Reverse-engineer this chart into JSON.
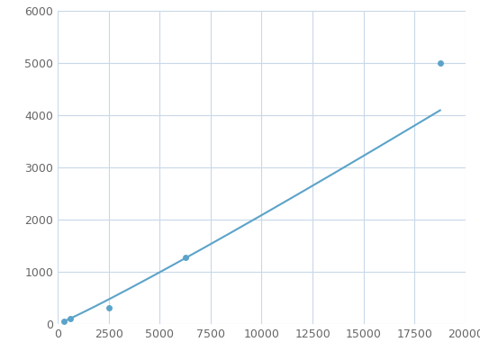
{
  "x": [
    312,
    625,
    2500,
    6250,
    18750
  ],
  "y": [
    60,
    110,
    310,
    1270,
    5000
  ],
  "line_color": "#5ba3c9",
  "marker_color": "#5ba3c9",
  "marker_size": 5,
  "line_width": 1.5,
  "xlim": [
    0,
    20000
  ],
  "ylim": [
    0,
    6000
  ],
  "xticks": [
    0,
    2500,
    5000,
    7500,
    10000,
    12500,
    15000,
    17500,
    20000
  ],
  "yticks": [
    0,
    1000,
    2000,
    3000,
    4000,
    5000,
    6000
  ],
  "grid_color": "#c8d8e8",
  "background_color": "#ffffff",
  "tick_label_color": "#666666",
  "tick_label_size": 9
}
